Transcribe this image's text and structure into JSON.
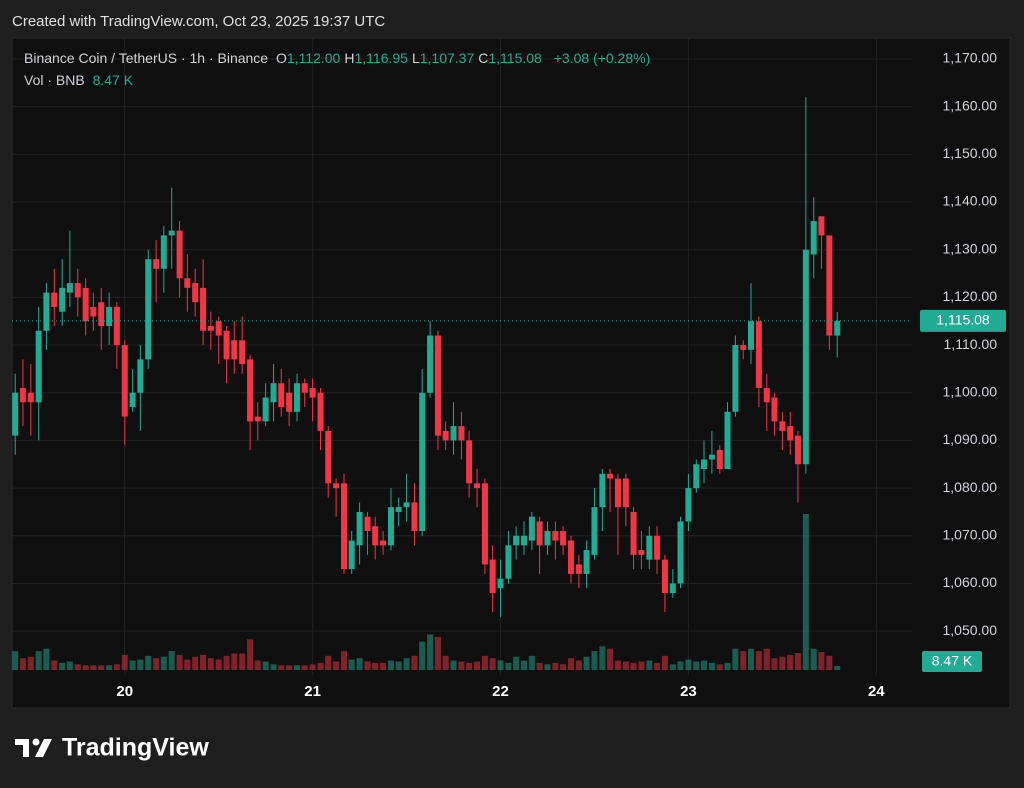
{
  "header": {
    "created": "Created with TradingView.com, Oct 23, 2025 19:37 UTC"
  },
  "chart_data": {
    "type": "candlestick",
    "title": "Binance Coin / TetherUS · 1h · Binance",
    "ohlc_legend": [
      {
        "key": "O",
        "value": "1,112.00"
      },
      {
        "key": "H",
        "value": "1,116.95"
      },
      {
        "key": "L",
        "value": "1,107.37"
      },
      {
        "key": "C",
        "value": "1,115.08"
      }
    ],
    "change": "+3.08 (+0.28%)",
    "volume_title": "Vol · BNB",
    "volume_label": "8.47 K",
    "last_price_label": "1,115.08",
    "up_color": "#22ab94",
    "down_color": "#f23645",
    "grid": true,
    "xlim": [
      19.4,
      24.19
    ],
    "xticks": [
      20,
      21,
      22,
      23,
      24
    ],
    "ylim": [
      1040.8,
      1174.4
    ],
    "yticks": [
      {
        "value": 1050,
        "label": "1,050.00"
      },
      {
        "value": 1060,
        "label": "1,060.00"
      },
      {
        "value": 1070,
        "label": "1,070.00"
      },
      {
        "value": 1080,
        "label": "1,080.00"
      },
      {
        "value": 1090,
        "label": "1,090.00"
      },
      {
        "value": 1100,
        "label": "1,100.00"
      },
      {
        "value": 1110,
        "label": "1,110.00"
      },
      {
        "value": 1120,
        "label": "1,120.00"
      },
      {
        "value": 1130,
        "label": "1,130.00"
      },
      {
        "value": 1140,
        "label": "1,140.00"
      },
      {
        "value": 1150,
        "label": "1,150.00"
      },
      {
        "value": 1160,
        "label": "1,160.00"
      },
      {
        "value": 1170,
        "label": "1,170.00"
      }
    ],
    "x": [
      19.417,
      19.458,
      19.5,
      19.542,
      19.583,
      19.625,
      19.667,
      19.708,
      19.75,
      19.792,
      19.833,
      19.875,
      19.917,
      19.958,
      20,
      20.042,
      20.083,
      20.125,
      20.167,
      20.208,
      20.25,
      20.292,
      20.333,
      20.375,
      20.417,
      20.458,
      20.5,
      20.542,
      20.583,
      20.625,
      20.667,
      20.708,
      20.75,
      20.792,
      20.833,
      20.875,
      20.917,
      20.958,
      21,
      21.042,
      21.083,
      21.125,
      21.167,
      21.208,
      21.25,
      21.292,
      21.333,
      21.375,
      21.417,
      21.458,
      21.5,
      21.542,
      21.583,
      21.625,
      21.667,
      21.708,
      21.75,
      21.792,
      21.833,
      21.875,
      21.917,
      21.958,
      22,
      22.042,
      22.083,
      22.125,
      22.167,
      22.208,
      22.25,
      22.292,
      22.333,
      22.375,
      22.417,
      22.458,
      22.5,
      22.542,
      22.583,
      22.625,
      22.667,
      22.708,
      22.75,
      22.792,
      22.833,
      22.875,
      22.917,
      22.958,
      23,
      23.042,
      23.083,
      23.125,
      23.167,
      23.208,
      23.25,
      23.292,
      23.333,
      23.375,
      23.417,
      23.458,
      23.5,
      23.542,
      23.583,
      23.625,
      23.667,
      23.708,
      23.75,
      23.792
    ],
    "open": [
      1091,
      1101,
      1100,
      1098,
      1113,
      1121,
      1117,
      1121,
      1123,
      1122,
      1118,
      1119,
      1114,
      1118,
      1110,
      1097,
      1100,
      1107,
      1128,
      1126,
      1133,
      1134,
      1124,
      1123,
      1122,
      1114,
      1115,
      1113,
      1111,
      1111,
      1107,
      1095,
      1094,
      1098,
      1102,
      1100,
      1096,
      1102,
      1101,
      1100,
      1092,
      1081,
      1081,
      1063,
      1068,
      1074,
      1072,
      1069,
      1068,
      1075,
      1076,
      1077,
      1071,
      1100,
      1112,
      1092,
      1090,
      1093,
      1090,
      1081,
      1081,
      1065,
      1059,
      1061,
      1068,
      1068,
      1069,
      1073,
      1068,
      1071,
      1071,
      1069,
      1064,
      1062,
      1066,
      1076,
      1083,
      1082,
      1082,
      1075,
      1067,
      1065,
      1070,
      1065,
      1058,
      1060,
      1073,
      1080,
      1084,
      1086,
      1088,
      1084,
      1096,
      1110,
      1109,
      1115,
      1101,
      1099,
      1094,
      1093,
      1091,
      1085,
      1129,
      1137,
      1133,
      1112
    ],
    "high": [
      1104,
      1107,
      1106,
      1118,
      1123,
      1126,
      1128,
      1134,
      1126,
      1124,
      1121,
      1122,
      1121,
      1119,
      1111,
      1105,
      1110,
      1130,
      1132,
      1135,
      1143,
      1136,
      1129,
      1126,
      1128,
      1117,
      1116,
      1114,
      1115,
      1116,
      1108,
      1098,
      1102,
      1106,
      1105,
      1103,
      1104,
      1103,
      1103,
      1101,
      1093,
      1082,
      1083,
      1071,
      1077,
      1075,
      1074,
      1071,
      1080,
      1078,
      1083,
      1081,
      1105,
      1115,
      1113,
      1094,
      1098,
      1096,
      1092,
      1084,
      1082,
      1068,
      1065,
      1071,
      1072,
      1073,
      1075,
      1074,
      1073,
      1073,
      1072,
      1070,
      1066,
      1069,
      1080,
      1084,
      1084,
      1083,
      1083,
      1076,
      1071,
      1072,
      1072,
      1066,
      1063,
      1074,
      1083,
      1086,
      1090,
      1092,
      1089,
      1098,
      1112,
      1111,
      1123,
      1116,
      1104,
      1100,
      1096,
      1096,
      1092,
      1162,
      1141,
      1137,
      1133,
      1116.95
    ],
    "low": [
      1087,
      1093,
      1091,
      1090,
      1109,
      1114,
      1114,
      1118,
      1116,
      1112,
      1113,
      1109,
      1110,
      1105,
      1089,
      1096,
      1092,
      1105,
      1119,
      1121,
      1126,
      1120,
      1117,
      1116,
      1110,
      1109,
      1106,
      1102,
      1104,
      1104,
      1088,
      1090,
      1093,
      1094,
      1095,
      1093,
      1094,
      1097,
      1094,
      1088,
      1078,
      1074,
      1062,
      1062,
      1064,
      1066,
      1065,
      1066,
      1067,
      1072,
      1073,
      1068,
      1070,
      1099,
      1088,
      1088,
      1087,
      1086,
      1078,
      1076,
      1062,
      1054,
      1053,
      1060,
      1065,
      1066,
      1067,
      1062,
      1066,
      1065,
      1066,
      1060,
      1059,
      1059,
      1065,
      1071,
      1075,
      1066,
      1072,
      1063,
      1063,
      1063,
      1062,
      1054,
      1057,
      1059,
      1071,
      1079,
      1081,
      1083,
      1083,
      1084,
      1095,
      1107,
      1106,
      1097,
      1092,
      1091,
      1088,
      1087,
      1077,
      1083,
      1124,
      1126,
      1109,
      1107.37
    ],
    "close": [
      1100,
      1098,
      1098,
      1113,
      1121,
      1118,
      1122,
      1123,
      1120,
      1115,
      1116,
      1114,
      1118,
      1110,
      1095,
      1100,
      1107,
      1128,
      1126,
      1133,
      1134,
      1124,
      1122,
      1119,
      1113,
      1113,
      1112,
      1107,
      1107,
      1106,
      1094,
      1094,
      1099,
      1102,
      1097,
      1096,
      1102,
      1100,
      1099,
      1092,
      1081,
      1080,
      1063,
      1069,
      1075,
      1071,
      1068,
      1068,
      1076,
      1076,
      1077,
      1071,
      1100,
      1112,
      1091,
      1090,
      1093,
      1090,
      1081,
      1080,
      1064,
      1058,
      1061,
      1068,
      1070,
      1070,
      1074,
      1068,
      1071,
      1069,
      1068,
      1062,
      1062,
      1067,
      1076,
      1083,
      1082,
      1076,
      1076,
      1066,
      1066,
      1070,
      1065,
      1058,
      1060,
      1073,
      1080,
      1085,
      1086,
      1087,
      1084,
      1096,
      1110,
      1109,
      1115,
      1101,
      1098,
      1094,
      1092,
      1090,
      1085,
      1130,
      1136,
      1133,
      1112,
      1115.08
    ],
    "volume": [
      40,
      25,
      28,
      40,
      45,
      20,
      15,
      18,
      12,
      10,
      10,
      10,
      10,
      12,
      32,
      20,
      22,
      30,
      25,
      28,
      40,
      32,
      22,
      28,
      32,
      25,
      22,
      30,
      35,
      35,
      65,
      20,
      18,
      12,
      10,
      10,
      10,
      10,
      12,
      15,
      30,
      18,
      40,
      22,
      25,
      18,
      15,
      15,
      20,
      18,
      25,
      30,
      60,
      75,
      70,
      30,
      20,
      18,
      15,
      18,
      30,
      25,
      20,
      15,
      28,
      20,
      30,
      15,
      12,
      15,
      12,
      25,
      20,
      28,
      40,
      50,
      45,
      20,
      18,
      15,
      18,
      20,
      15,
      30,
      12,
      18,
      22,
      18,
      20,
      15,
      12,
      15,
      45,
      40,
      45,
      40,
      45,
      25,
      28,
      32,
      36,
      330,
      45,
      38,
      30,
      8.47
    ]
  },
  "footer": {
    "brand": "TradingView"
  }
}
